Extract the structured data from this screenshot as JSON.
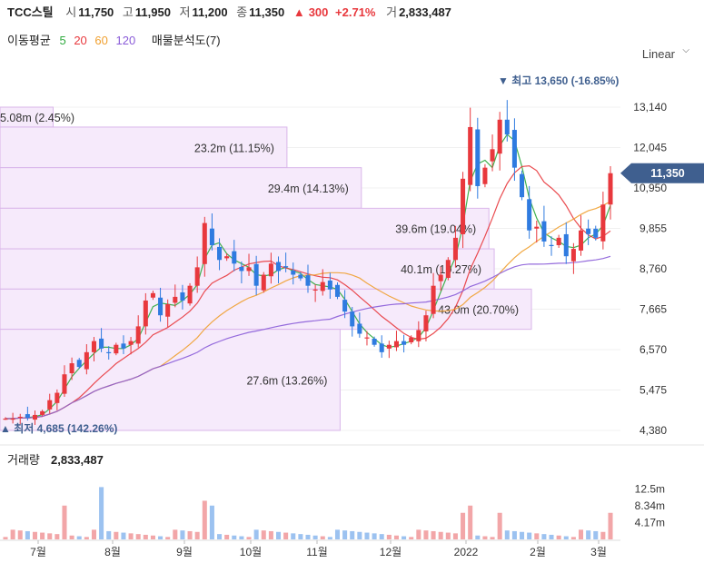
{
  "header": {
    "name": "TCC스틸",
    "open_label": "시",
    "open": "11,750",
    "high_label": "고",
    "high": "11,950",
    "low_label": "저",
    "low": "11,200",
    "close_label": "종",
    "close": "11,350",
    "change_arrow": "▲",
    "change": "300",
    "change_pct": "+2.71%",
    "volume_label": "거",
    "volume": "2,833,487"
  },
  "indicators": {
    "ma_label": "이동평균",
    "ma_periods": [
      {
        "value": "5",
        "color": "#2eaa3d"
      },
      {
        "value": "20",
        "color": "#e8383d"
      },
      {
        "value": "60",
        "color": "#f0a030"
      },
      {
        "value": "120",
        "color": "#8a5cd8"
      }
    ],
    "volume_profile_label": "매물분석도(7)"
  },
  "scale_label": "Linear",
  "colors": {
    "up": "#e8383d",
    "down": "#2f7be0",
    "profile_fill": "#f6eafb",
    "profile_stroke": "#d9b6ea",
    "price_tag": "#3f5f8f"
  },
  "chart_data": [
    {
      "type": "candlestick",
      "title": "TCC스틸",
      "y_ticks": [
        "13,140",
        "12,045",
        "10,950",
        "9,855",
        "8,760",
        "7,665",
        "6,570",
        "5,475",
        "4,380"
      ],
      "ylim": [
        4380,
        13900
      ],
      "x_ticks": [
        "7월",
        "8월",
        "9월",
        "10월",
        "11월",
        "12월",
        "2022",
        "2월",
        "3월"
      ],
      "current_price": "11,350",
      "annotations": {
        "high": "▼ 최고 13,650 (-16.85%)",
        "low": "▲ 최저 4,685 (142.26%)"
      },
      "volume_profile": [
        {
          "label": "5.08m (2.45%)",
          "low": 12600,
          "high": 13140,
          "fraction": 0.1
        },
        {
          "label": "23.2m (11.15%)",
          "low": 11500,
          "high": 12600,
          "fraction": 0.54
        },
        {
          "label": "29.4m (14.13%)",
          "low": 10400,
          "high": 11500,
          "fraction": 0.68
        },
        {
          "label": "39.6m (19.04%)",
          "low": 9300,
          "high": 10400,
          "fraction": 0.92
        },
        {
          "label": "40.1m (19.27%)",
          "low": 8210,
          "high": 9300,
          "fraction": 0.93
        },
        {
          "label": "43.0m (20.70%)",
          "low": 7120,
          "high": 8210,
          "fraction": 1.0
        },
        {
          "label": "27.6m (13.26%)",
          "low": 4380,
          "high": 7120,
          "fraction": 0.64
        }
      ],
      "close_path": [
        4700,
        4700,
        4750,
        4720,
        4800,
        4900,
        5200,
        5400,
        5900,
        6200,
        6100,
        6500,
        6800,
        6600,
        6500,
        6700,
        6600,
        6800,
        7200,
        7900,
        8100,
        7500,
        7800,
        8000,
        7900,
        8300,
        8800,
        10000,
        9400,
        9000,
        9100,
        8900,
        8700,
        8800,
        8300,
        8600,
        8900,
        8700,
        8800,
        8600,
        8500,
        8300,
        8200,
        8400,
        8200,
        8000,
        7600,
        7200,
        7000,
        6900,
        6700,
        6500,
        6700,
        6800,
        6700,
        6900,
        7100,
        7500,
        8300,
        8600,
        9000,
        9600,
        11200,
        12600,
        11000,
        11500,
        12000,
        12800,
        12400,
        11500,
        10700,
        9800,
        9900,
        9500,
        9400,
        9600,
        9100,
        9300,
        9800,
        9700,
        9600,
        10500,
        11350
      ],
      "ma_periods": [
        5,
        20,
        60,
        120
      ],
      "volume_axis": {
        "label": "거래량",
        "value": "2,833,487",
        "ticks": [
          "12.5m",
          "8.34m",
          "4.17m"
        ],
        "max": 16700000
      }
    }
  ]
}
